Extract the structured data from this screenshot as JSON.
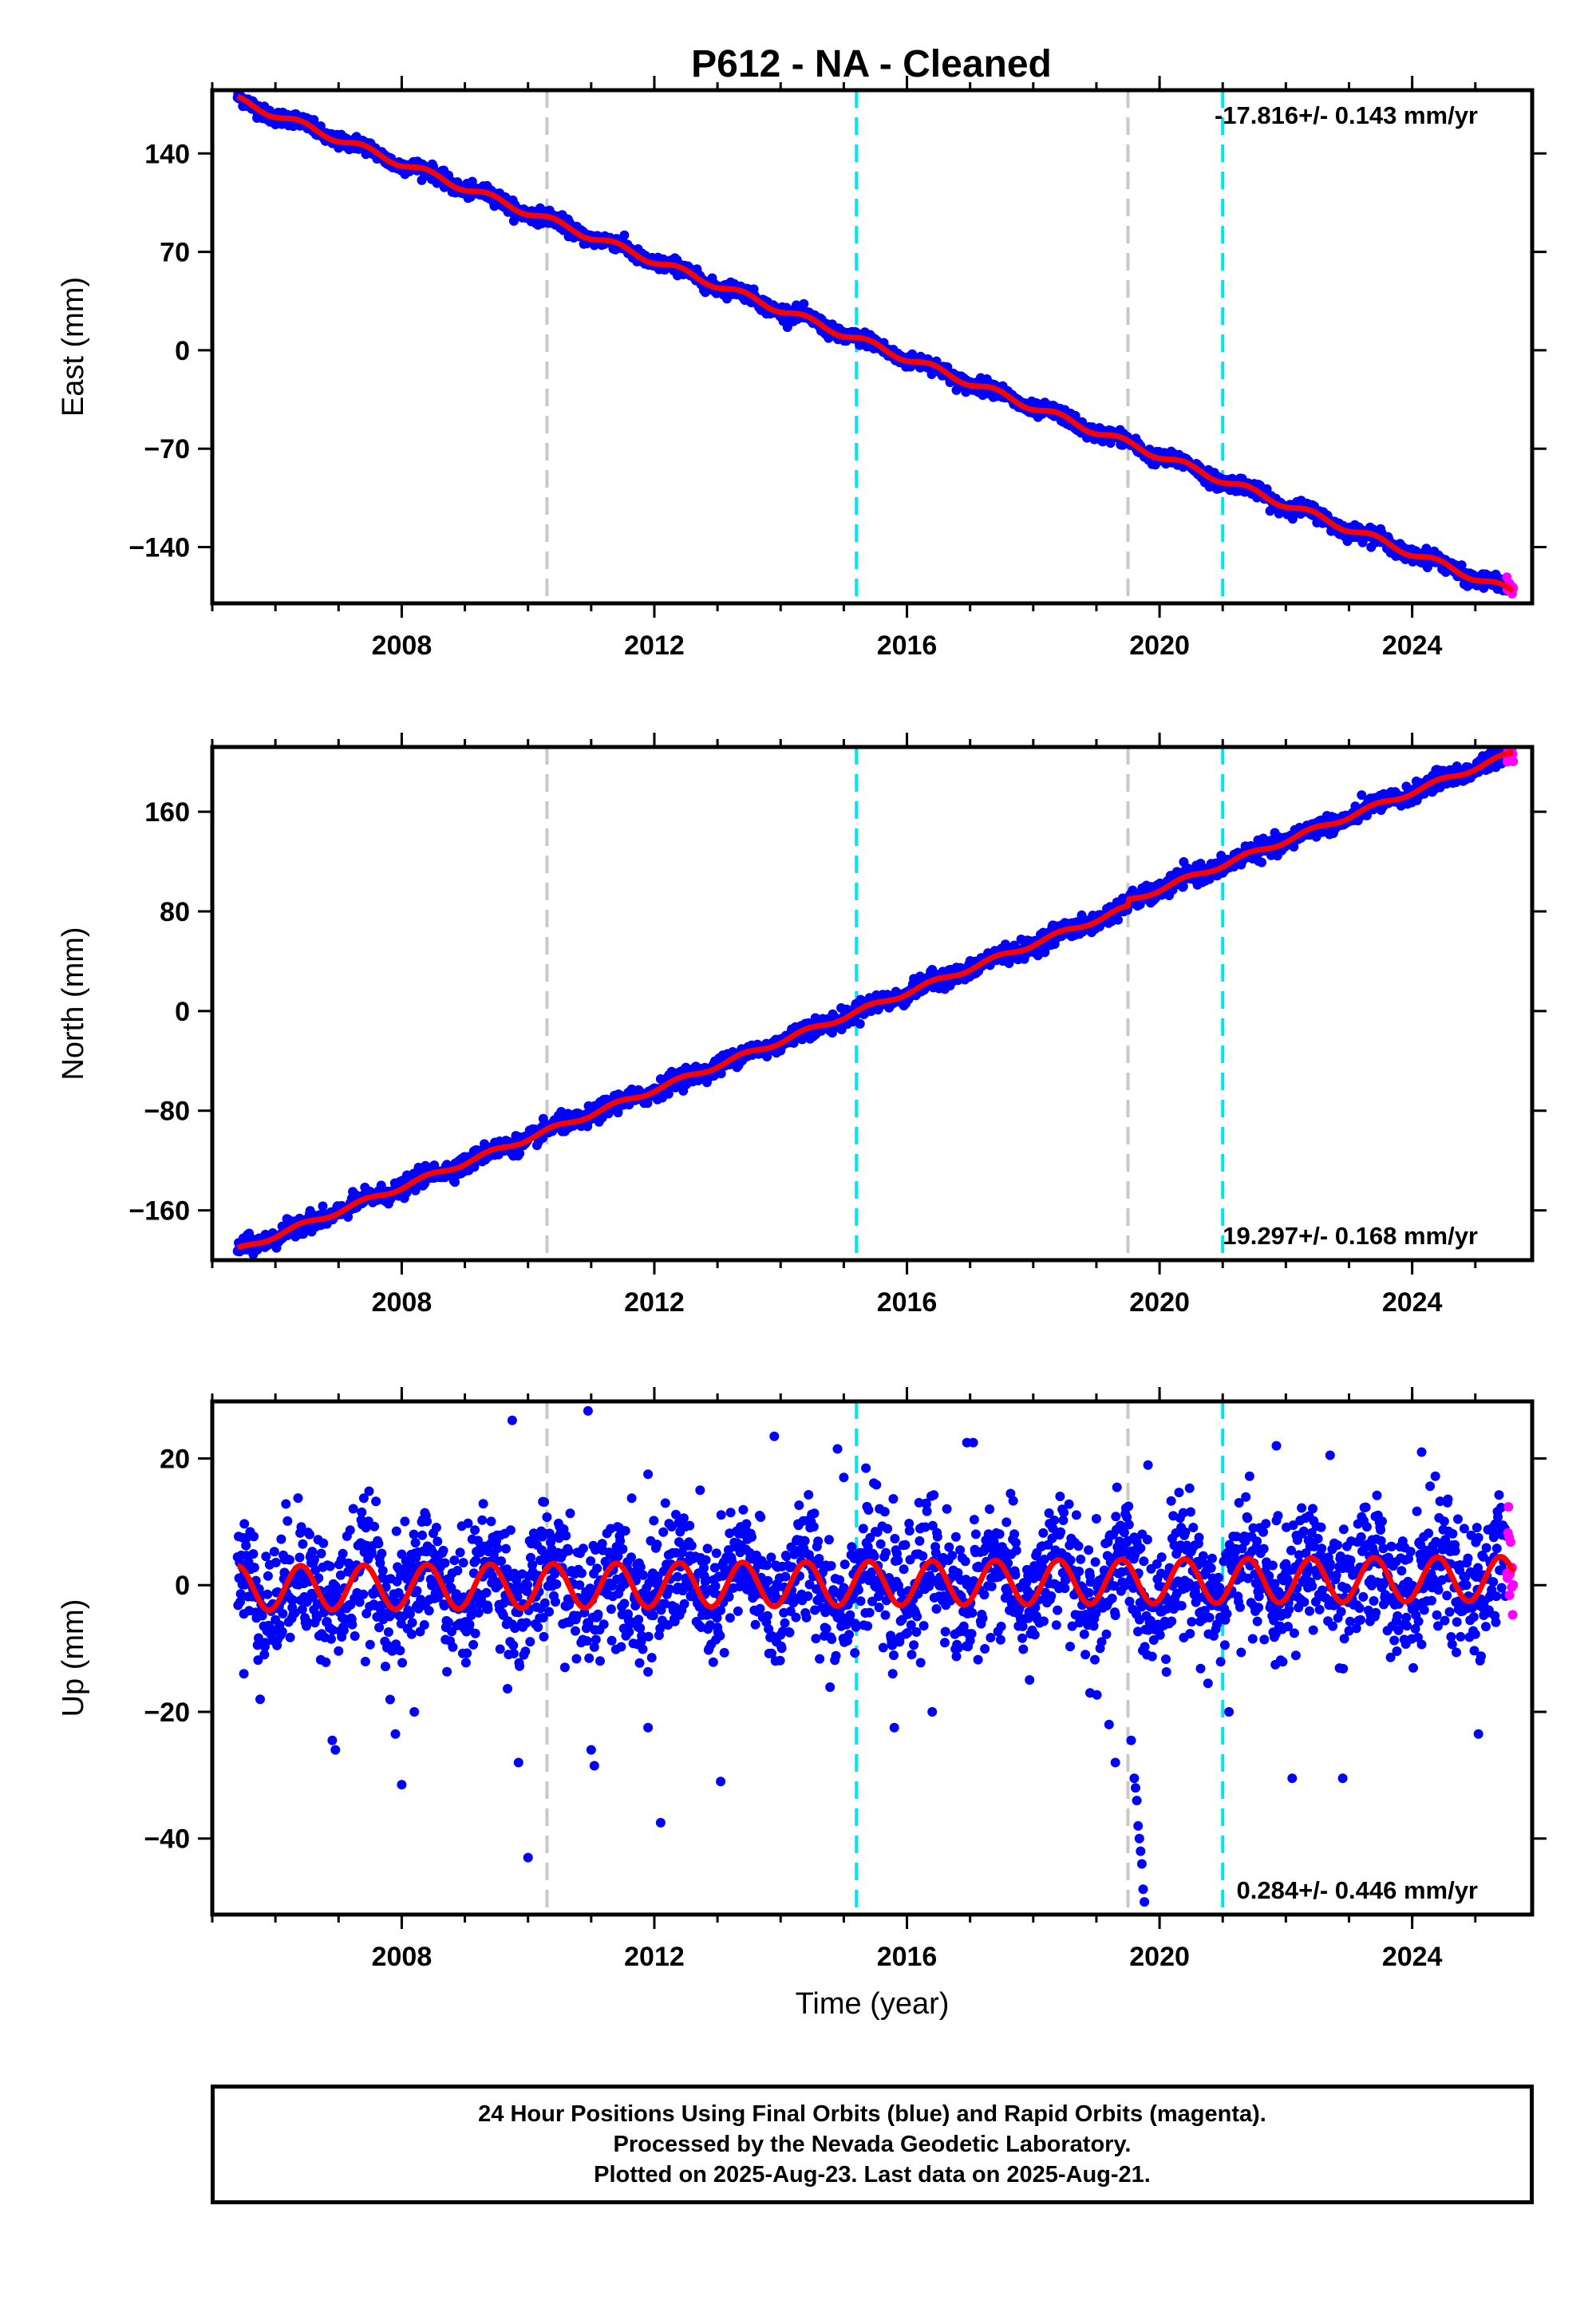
{
  "title": "P612  - NA - Cleaned",
  "colors": {
    "final_orbits": "#0000ff",
    "rapid_orbits": "#ff00ff",
    "model": "#ff0000",
    "event_gray": "#c8c8c8",
    "event_cyan": "#00e5ee"
  },
  "caption": {
    "line1": "24 Hour Positions Using Final Orbits (blue) and Rapid Orbits (magenta).",
    "line2": "Processed by the Nevada Geodetic Laboratory.",
    "line3": "Plotted on 2025-Aug-23. Last data on 2025-Aug-21."
  },
  "chart_data": [
    {
      "type": "scatter",
      "ylabel": "East (mm)",
      "xlabel": "",
      "xlim": [
        2005.0,
        2025.9
      ],
      "ylim": [
        -180,
        185
      ],
      "yticks": [
        -140,
        -70,
        0,
        70,
        140
      ],
      "xticks": [
        2008,
        2012,
        2016,
        2020,
        2024
      ],
      "rate_label": "-17.816+/- 0.143 mm/yr",
      "rate_position": "top-right",
      "rate": -17.816,
      "trend_start": [
        2005.4,
        178
      ],
      "trend_end": [
        2025.6,
        -172
      ],
      "season_amplitude": 2.5,
      "noise": 2.5,
      "offsets": [],
      "outliers": [],
      "event_lines": [
        {
          "x": 2010.3,
          "style": "gray"
        },
        {
          "x": 2015.2,
          "style": "cyan"
        },
        {
          "x": 2019.5,
          "style": "gray"
        },
        {
          "x": 2021.0,
          "style": "cyan"
        }
      ],
      "rapid_segment": [
        2025.5,
        2025.65
      ]
    },
    {
      "type": "scatter",
      "ylabel": "North (mm)",
      "xlabel": "",
      "xlim": [
        2005.0,
        2025.9
      ],
      "ylim": [
        -200,
        212
      ],
      "yticks": [
        -160,
        -80,
        0,
        80,
        160
      ],
      "xticks": [
        2008,
        2012,
        2016,
        2020,
        2024
      ],
      "rate_label": "19.297+/- 0.168 mm/yr",
      "rate_position": "bottom-right",
      "rate": 19.297,
      "trend_start": [
        2005.4,
        -192
      ],
      "trend_end": [
        2025.6,
        202
      ],
      "season_amplitude": 2.0,
      "noise": 3.5,
      "offsets": [
        {
          "x": 2019.5,
          "dy": 5
        }
      ],
      "outliers": [],
      "event_lines": [
        {
          "x": 2010.3,
          "style": "gray"
        },
        {
          "x": 2015.2,
          "style": "cyan"
        },
        {
          "x": 2019.5,
          "style": "gray"
        },
        {
          "x": 2021.0,
          "style": "cyan"
        }
      ],
      "rapid_segment": [
        2025.5,
        2025.65
      ]
    },
    {
      "type": "scatter",
      "ylabel": "Up (mm)",
      "xlabel": "Time (year)",
      "xlim": [
        2005.0,
        2025.9
      ],
      "ylim": [
        -52,
        29
      ],
      "yticks": [
        -40,
        -20,
        0,
        20
      ],
      "xticks": [
        2008,
        2012,
        2016,
        2020,
        2024
      ],
      "rate_label": "0.284+/- 0.446 mm/yr",
      "rate_position": "bottom-right",
      "rate": 0.284,
      "trend_start": [
        2005.4,
        -0.5
      ],
      "trend_end": [
        2025.6,
        1.0
      ],
      "season_amplitude": 3.5,
      "noise": 5.0,
      "offsets": [],
      "outliers": [
        [
          2005.5,
          -14
        ],
        [
          2006.9,
          -24.5
        ],
        [
          2006.95,
          -26
        ],
        [
          2007.9,
          -23.5
        ],
        [
          2008.0,
          -31.5
        ],
        [
          2008.2,
          -20
        ],
        [
          2009.75,
          26
        ],
        [
          2009.85,
          -28
        ],
        [
          2010.0,
          -43
        ],
        [
          2010.95,
          27.5
        ],
        [
          2011.0,
          -26
        ],
        [
          2011.05,
          -28.5
        ],
        [
          2011.9,
          -22.5
        ],
        [
          2012.1,
          -37.5
        ],
        [
          2013.05,
          -31
        ],
        [
          2013.9,
          23.5
        ],
        [
          2015.8,
          -22.5
        ],
        [
          2016.4,
          -20
        ],
        [
          2018.9,
          -17
        ],
        [
          2019.2,
          -22
        ],
        [
          2019.3,
          -28
        ],
        [
          2019.55,
          -24.5
        ],
        [
          2019.6,
          -30.5
        ],
        [
          2019.62,
          -32
        ],
        [
          2019.64,
          -34
        ],
        [
          2019.66,
          -38
        ],
        [
          2019.68,
          -40
        ],
        [
          2019.7,
          -42
        ],
        [
          2019.72,
          -44
        ],
        [
          2019.74,
          -48
        ],
        [
          2019.76,
          -50
        ],
        [
          2021.1,
          -20
        ],
        [
          2022.1,
          -30.5
        ],
        [
          2022.9,
          -30.5
        ],
        [
          2024.15,
          21
        ],
        [
          2025.05,
          -23.5
        ],
        [
          2016.95,
          22.5
        ],
        [
          2015.0,
          17
        ],
        [
          2014.9,
          21.5
        ],
        [
          2011.9,
          17.5
        ],
        [
          2017.05,
          22.5
        ],
        [
          2021.85,
          22
        ],
        [
          2022.7,
          20.5
        ]
      ],
      "event_lines": [
        {
          "x": 2010.3,
          "style": "gray"
        },
        {
          "x": 2015.2,
          "style": "cyan"
        },
        {
          "x": 2019.5,
          "style": "gray"
        },
        {
          "x": 2021.0,
          "style": "cyan"
        }
      ],
      "rapid_segment": [
        2025.5,
        2025.65
      ]
    }
  ]
}
